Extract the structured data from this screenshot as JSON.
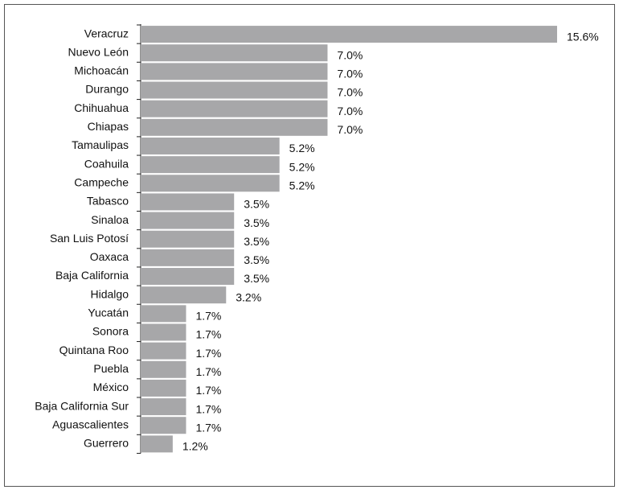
{
  "chart_data": {
    "type": "bar",
    "orientation": "horizontal",
    "color": "#a7a7a9",
    "categories": [
      "Veracruz",
      "Nuevo León",
      "Michoacán",
      "Durango",
      "Chihuahua",
      "Chiapas",
      "Tamaulipas",
      "Coahuila",
      "Campeche",
      "Tabasco",
      "Sinaloa",
      "San Luis Potosí",
      "Oaxaca",
      "Baja California",
      "Hidalgo",
      "Yucatán",
      "Sonora",
      "Quintana Roo",
      "Puebla",
      "México",
      "Baja California Sur",
      "Aguascalientes",
      "Guerrero"
    ],
    "values": [
      15.6,
      7.0,
      7.0,
      7.0,
      7.0,
      7.0,
      5.2,
      5.2,
      5.2,
      3.5,
      3.5,
      3.5,
      3.5,
      3.5,
      3.2,
      1.7,
      1.7,
      1.7,
      1.7,
      1.7,
      1.7,
      1.7,
      1.2
    ],
    "value_labels": [
      "15.6%",
      "7.0%",
      "7.0%",
      "7.0%",
      "7.0%",
      "7.0%",
      "5.2%",
      "5.2%",
      "5.2%",
      "3.5%",
      "3.5%",
      "3.5%",
      "3.5%",
      "3.5%",
      "3.2%",
      "1.7%",
      "1.7%",
      "1.7%",
      "1.7%",
      "1.7%",
      "1.7%",
      "1.7%",
      "1.2%"
    ]
  }
}
